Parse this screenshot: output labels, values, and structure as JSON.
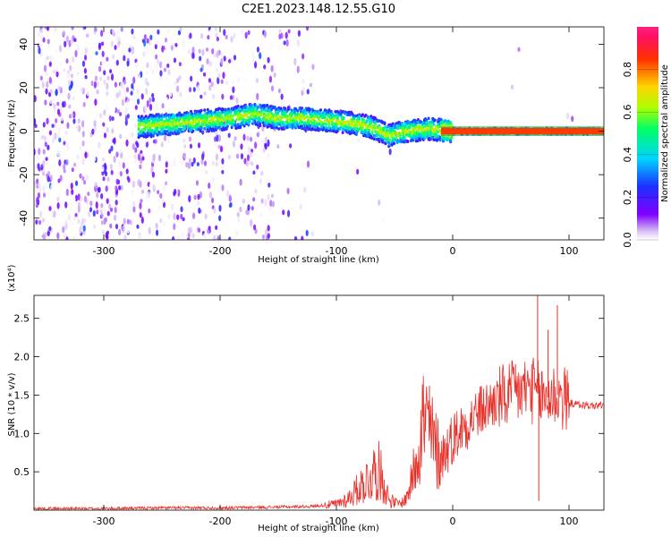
{
  "title": "C2E1.2023.148.12.55.G10",
  "chart_data": [
    {
      "type": "heatmap",
      "xlabel": "Height of straight line (km)",
      "ylabel": "Frequency (Hz)",
      "xlim": [
        -360,
        130
      ],
      "ylim": [
        -50,
        48
      ],
      "xticks": [
        -300,
        -200,
        -100,
        0,
        100
      ],
      "xtick_labels": [
        "-300",
        "-200",
        "-100",
        "0",
        "100"
      ],
      "yticks": [
        -40,
        -20,
        0,
        20,
        40
      ],
      "ytick_labels": [
        "-40",
        "-20",
        "0",
        "20",
        "40"
      ],
      "colorbar": {
        "label": "Normalized spectral amplitude",
        "range": [
          0,
          1
        ],
        "ticks": [
          0.0,
          0.2,
          0.4,
          0.6,
          0.8
        ],
        "tick_labels": [
          "0.0",
          "0.2",
          "0.4",
          "0.6",
          "0.8"
        ],
        "colormap": "hsv-like (white, purple, blue, cyan, green, yellow, red, magenta)"
      },
      "features": [
        {
          "region": "noise",
          "x_range": [
            -360,
            -120
          ],
          "freq_range": [
            -50,
            48
          ],
          "amplitude": "low (0.0-0.3)"
        },
        {
          "region": "signal-track",
          "points": [
            [
              -270,
              2
            ],
            [
              -250,
              3
            ],
            [
              -230,
              4
            ],
            [
              -190,
              6
            ],
            [
              -170,
              8
            ],
            [
              -150,
              6
            ],
            [
              -130,
              6
            ],
            [
              -110,
              5
            ],
            [
              -90,
              4
            ],
            [
              -70,
              2
            ],
            [
              -55,
              -2
            ],
            [
              -40,
              0
            ],
            [
              -20,
              1
            ],
            [
              0,
              0
            ],
            [
              50,
              0
            ],
            [
              100,
              0
            ],
            [
              130,
              0
            ]
          ],
          "amplitude": "0.4-1.0"
        },
        {
          "region": "carrier-line",
          "x_range": [
            -10,
            130
          ],
          "freq": 0,
          "amplitude": "~0.9"
        }
      ]
    },
    {
      "type": "line",
      "xlabel": "Height of straight line (km)",
      "ylabel": "SNR (10 * v/v)",
      "yscale_label": "(x10⁴)",
      "xlim": [
        -360,
        130
      ],
      "ylim": [
        0,
        2.8
      ],
      "xticks": [
        -300,
        -200,
        -100,
        0,
        100
      ],
      "xtick_labels": [
        "-300",
        "-200",
        "-100",
        "0",
        "100"
      ],
      "yticks": [
        0.5,
        1.0,
        1.5,
        2.0,
        2.5
      ],
      "ytick_labels": [
        "0.5",
        "1.0",
        "1.5",
        "2.0",
        "2.5"
      ],
      "color": "#e8302a",
      "series": [
        {
          "x": [
            -360,
            -300,
            -250,
            -200,
            -150,
            -120,
            -100,
            -90,
            -80,
            -70,
            -65,
            -60,
            -55,
            -50,
            -45,
            -40,
            -35,
            -30,
            -25,
            -20,
            -15,
            -10,
            -5,
            0,
            10,
            20,
            30,
            40,
            50,
            60,
            65,
            70,
            75,
            80,
            85,
            90,
            95,
            100,
            110,
            120,
            130
          ],
          "y": [
            0.02,
            0.02,
            0.03,
            0.03,
            0.04,
            0.05,
            0.08,
            0.15,
            0.3,
            0.45,
            0.55,
            0.4,
            0.15,
            0.1,
            0.08,
            0.15,
            0.4,
            0.85,
            1.2,
            1.0,
            0.8,
            0.7,
            0.8,
            0.95,
            1.1,
            1.25,
            1.35,
            1.45,
            1.5,
            1.55,
            1.6,
            1.55,
            1.5,
            1.45,
            1.5,
            1.5,
            1.45,
            1.4,
            1.37,
            1.36,
            1.37
          ]
        }
      ],
      "spikes": [
        {
          "x": 54,
          "y": 1.9
        },
        {
          "x": 62,
          "y": 1.85
        },
        {
          "x": 73,
          "y": 2.8
        },
        {
          "x": 74,
          "y": 0.12
        },
        {
          "x": 82,
          "y": 2.35
        },
        {
          "x": 90,
          "y": 2.67
        },
        {
          "x": -20,
          "y": 1.62
        },
        {
          "x": -67,
          "y": 0.7
        }
      ]
    }
  ]
}
